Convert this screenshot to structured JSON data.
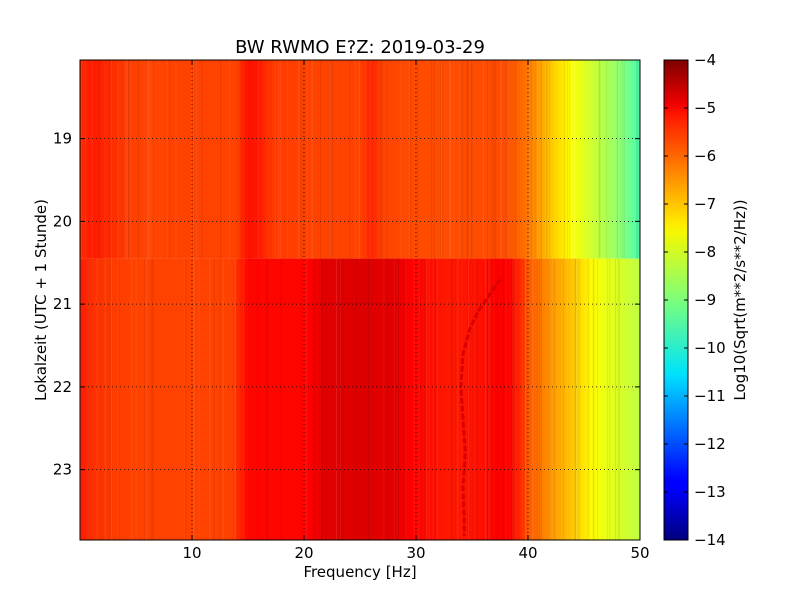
{
  "chart_data": {
    "type": "heatmap",
    "title": "BW RWMO E?Z: 2019-03-29",
    "xlabel": "Frequency [Hz]",
    "ylabel": "Lokalzeit (UTC + 1 Stunde)",
    "xlim": [
      0,
      50
    ],
    "ylim": [
      18.05,
      23.85
    ],
    "y_inverted": true,
    "grid": true,
    "x_ticks": [
      10,
      20,
      30,
      40,
      50
    ],
    "x_tick_labels": [
      "10",
      "20",
      "30",
      "40",
      "50"
    ],
    "y_ticks": [
      19,
      20,
      21,
      22,
      23
    ],
    "y_tick_labels": [
      "19",
      "20",
      "21",
      "22",
      "23"
    ],
    "colormap": "jet",
    "colorbar": {
      "label": "Log10(Sqrt(m**2/s**2/Hz))",
      "range": [
        -14,
        -4
      ],
      "ticks": [
        -4,
        -5,
        -6,
        -7,
        -8,
        -9,
        -10,
        -11,
        -12,
        -13,
        -14
      ],
      "tick_labels": [
        "−4",
        "−5",
        "−6",
        "−7",
        "−8",
        "−9",
        "−10",
        "−11",
        "−12",
        "−13",
        "−14"
      ]
    },
    "spectrum_before_2030": {
      "frequencies": [
        0,
        1,
        2,
        5,
        10,
        14,
        15,
        16,
        17,
        20,
        25,
        26,
        27,
        30,
        35,
        38,
        40,
        42,
        44,
        46,
        48,
        50
      ],
      "values": [
        -5.7,
        -5.5,
        -5.6,
        -5.9,
        -5.9,
        -5.9,
        -5.4,
        -5.5,
        -5.8,
        -5.9,
        -5.9,
        -5.6,
        -5.9,
        -6.0,
        -6.0,
        -6.0,
        -6.4,
        -7.2,
        -7.8,
        -8.3,
        -8.8,
        -9.5
      ]
    },
    "spectrum_after_2030": {
      "frequencies": [
        0,
        1,
        2,
        5,
        10,
        13.5,
        15,
        20,
        22,
        25,
        28,
        30,
        33,
        36,
        38,
        39,
        40,
        42,
        44,
        46,
        48,
        50
      ],
      "values": [
        -5.5,
        -5.7,
        -5.8,
        -5.9,
        -5.9,
        -5.9,
        -5.3,
        -5.3,
        -5.0,
        -4.9,
        -5.0,
        -5.3,
        -5.5,
        -5.4,
        -5.2,
        -5.5,
        -6.1,
        -6.7,
        -7.2,
        -7.8,
        -8.1,
        -8.4
      ]
    },
    "regime_change_time": 20.45,
    "spectral_line": {
      "times": [
        20.7,
        20.9,
        21.1,
        21.3,
        21.6,
        22.0,
        22.4,
        22.8,
        23.2,
        23.6,
        23.8
      ],
      "frequencies": [
        37.5,
        36.5,
        35.5,
        34.8,
        34.2,
        34.0,
        34.2,
        34.4,
        34.2,
        34.3,
        34.3
      ],
      "value": -4.9
    }
  }
}
